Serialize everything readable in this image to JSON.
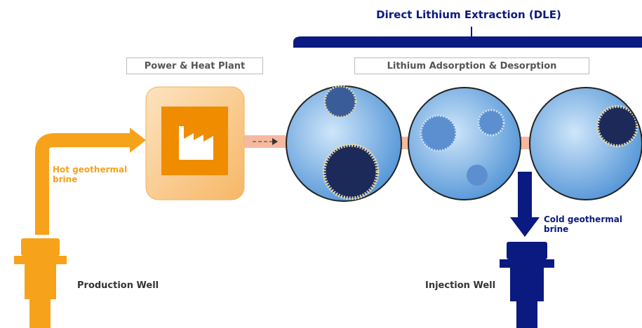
{
  "title": "Direct Lithium Extraction (DLE)",
  "stages": {
    "plant": "Power & Heat Plant",
    "adsorption": "Lithium Adsorption & Desorption"
  },
  "flows": {
    "hot": "Hot geothermal brine",
    "cold": "Cold geothermal brine"
  },
  "wells": {
    "production": "Production Well",
    "injection": "Injection Well"
  }
}
